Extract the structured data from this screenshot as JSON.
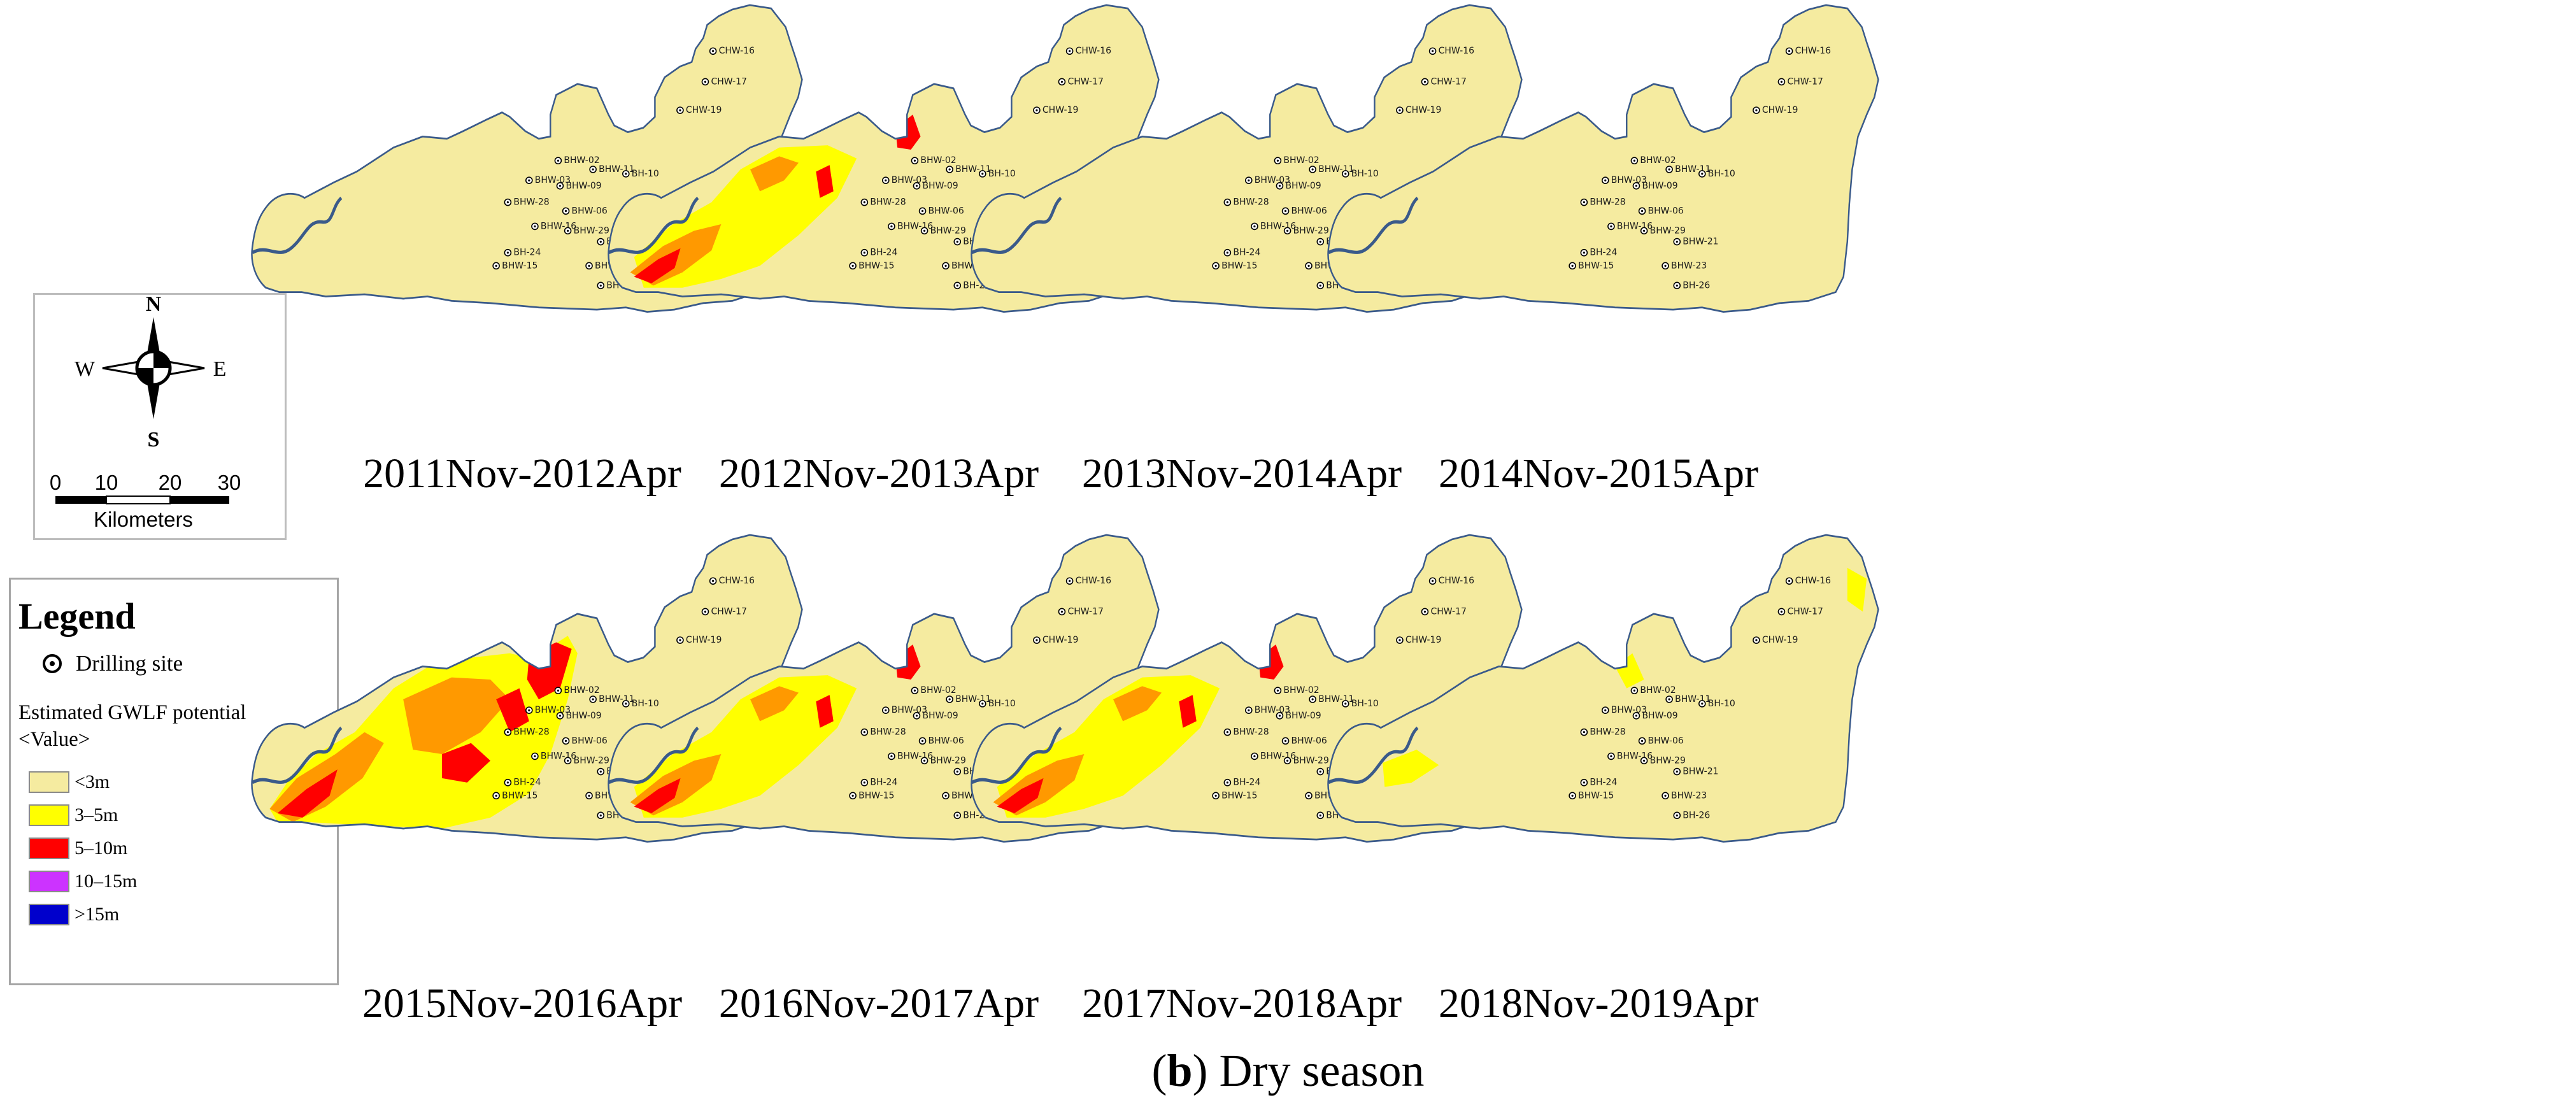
{
  "compass": {
    "north": "N",
    "south": "S",
    "east": "E",
    "west": "W",
    "scale_ticks": [
      "0",
      "10",
      "20",
      "30"
    ],
    "scale_unit": "Kilometers"
  },
  "legend": {
    "title": "Legend",
    "site_label": "Drilling site",
    "field_name": "Estimated GWLF potential",
    "field_sub": "<Value>",
    "classes": [
      {
        "label": "<3m",
        "color": "#f5eba0"
      },
      {
        "label": "3–5m",
        "color": "#ffff00"
      },
      {
        "label": "5–10m",
        "color": "#ff0000"
      },
      {
        "label": "10–15m",
        "color": "#cc33ff"
      },
      {
        "label": ">15m",
        "color": "#0000cc"
      }
    ]
  },
  "colors": {
    "base": "#f5eba0",
    "outline": "#3a5a8a",
    "river": "#3a5a8a",
    "yellow": "#ffff00",
    "orange": "#ff9900",
    "red": "#ff0000"
  },
  "sites": [
    "CHW-16",
    "CHW-17",
    "CHW-19",
    "BHW-02",
    "BHW-11",
    "BH-10",
    "BHW-03",
    "BHW-09",
    "BHW-28",
    "BHW-06",
    "BHW-16",
    "BHW-29",
    "BHW-21",
    "BH-24",
    "BHW-15",
    "BHW-23",
    "BH-26"
  ],
  "maps": [
    {
      "caption": "2011Nov-2012Apr",
      "intensity": 0
    },
    {
      "caption": "2012Nov-2013Apr",
      "intensity": 2
    },
    {
      "caption": "2013Nov-2014Apr",
      "intensity": 0
    },
    {
      "caption": "2014Nov-2015Apr",
      "intensity": 0
    },
    {
      "caption": "2015Nov-2016Apr",
      "intensity": 3
    },
    {
      "caption": "2016Nov-2017Apr",
      "intensity": 2
    },
    {
      "caption": "2017Nov-2018Apr",
      "intensity": 2
    },
    {
      "caption": "2018Nov-2019Apr",
      "intensity": 1
    }
  ],
  "figure_caption": {
    "letter": "b",
    "text": " Dry season"
  }
}
